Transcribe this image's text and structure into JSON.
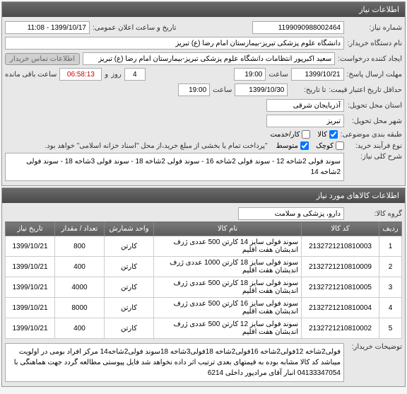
{
  "headers": {
    "info_title": "اطلاعات نیاز",
    "items_title": "اطلاعات کالاهای مورد نیاز"
  },
  "labels": {
    "need_number": "شماره نیاز:",
    "public_date": "تاریخ و ساعت اعلان عمومی:",
    "buyer_device": "نام دستگاه خریدار:",
    "creator": "ایجاد کننده درخواست:",
    "contact_btn": "اطلاعات تماس خریدار",
    "deadline": "مهلت ارسال پاسخ:",
    "saat": "ساعت",
    "va": "و",
    "rooz": "روز",
    "remain": "ساعت باقی مانده",
    "validity": "حداقل تاریخ اعتبار قیمت:",
    "until": "تا تاریخ:",
    "delivery_province": "استان محل تحویل:",
    "delivery_city": "شهر محل تحویل:",
    "classification": "طبقه بندی موضوعی:",
    "goods": "کالا",
    "work": "کار/خدمت",
    "process": "نوع فرآیند خرید:",
    "small": "کوچک",
    "medium": "متوسط",
    "process_note": "\"پرداخت تمام یا بخشی از مبلغ خرید،از محل \"اسناد خزانه اسلامی\" خواهد بود.",
    "main_desc": "شرح کلی نیاز:",
    "group": "گروه کالا:",
    "explanations": "توضیحات خریدار:"
  },
  "values": {
    "need_number": "1199090988002464",
    "public_date": "1399/10/17 - 11:08",
    "buyer_device": "دانشگاه علوم پزشکی تبریز-بیمارستان امام رضا (ع) تبریز",
    "creator": "سعید اکبرپور انتظامات دانشگاه علوم پزشکی تبریز-بیمارستان امام رضا (ع) تبریز",
    "deadline_date": "1399/10/21",
    "deadline_time": "19:00",
    "days": "4",
    "countdown": "06:58:13",
    "validity_date": "1399/10/30",
    "validity_time": "19:00",
    "province": "آذربایجان شرقی",
    "city": "تبریز",
    "main_desc": "سوند فولی 2شاخه 12 - سوند فولی 2شاخه 16 - سوند فولی 2شاخه 18 - سوند فولی 3شاخه 18 - سوند فولی 2شاخه 14",
    "group": "دارو، پزشکی و سلامت",
    "explanations": "فولی2شاخه 12فولی2شاخه 16فولی2شاخه 18فولی3شاخه 18سوند فولی2شاخه14 مرکز افراد بومی در اولویت میباشد کد کالا مشابه بوده به قیمتهای بعدی ترتیب اثر داده نخواهد شد فایل پیوستی مطالعه گردد جهت هماهنگی با 04133347054 انبار آقای مرادپور داخلی 6214"
  },
  "table": {
    "cols": {
      "row": "ردیف",
      "code": "کد کالا",
      "name": "نام کالا",
      "unit": "واحد شمارش",
      "qty": "تعداد / مقدار",
      "date": "تاریخ نیاز"
    },
    "rows": [
      {
        "n": "1",
        "code": "2132721210810003",
        "name": "سوند فولی سایز 14 کارتن 500 عددی ژرف اندیشان هفت اقلیم",
        "unit": "کارتن",
        "qty": "800",
        "date": "1399/10/21"
      },
      {
        "n": "2",
        "code": "2132721210810009",
        "name": "سوند فولی سایز 18 کارتن 1000 عددی ژرف اندیشان هفت اقلیم",
        "unit": "کارتن",
        "qty": "400",
        "date": "1399/10/21"
      },
      {
        "n": "3",
        "code": "2132721210810005",
        "name": "سوند فولی سایز 18 کارتن 500 عددی ژرف اندیشان هفت اقلیم",
        "unit": "کارتن",
        "qty": "4000",
        "date": "1399/10/21"
      },
      {
        "n": "4",
        "code": "2132721210810004",
        "name": "سوند فولی سایز 16 کارتن 500 عددی ژرف اندیشان هفت اقلیم",
        "unit": "کارتن",
        "qty": "8000",
        "date": "1399/10/21"
      },
      {
        "n": "5",
        "code": "2132721210810002",
        "name": "سوند فولی سایز 12 کارتن 500 عددی ژرف اندیشان هفت اقلیم",
        "unit": "کارتن",
        "qty": "400",
        "date": "1399/10/21"
      }
    ]
  }
}
